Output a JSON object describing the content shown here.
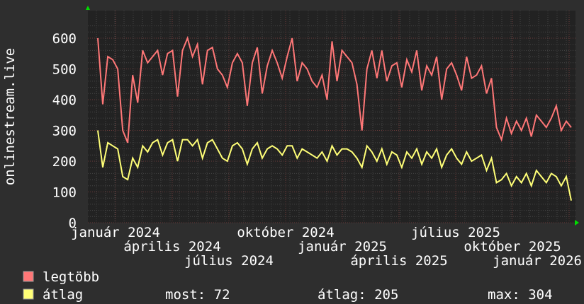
{
  "chart_data": {
    "type": "line",
    "ylabel": "onlinestream.live",
    "ylim": [
      0,
      650
    ],
    "yticks": [
      0,
      100,
      200,
      300,
      400,
      500,
      600
    ],
    "xtick_labels": [
      "január 2024",
      "április 2024",
      "július 2024",
      "október 2024",
      "január 2025",
      "április 2025",
      "július 2025",
      "október 2025",
      "január 2026"
    ],
    "grid": true,
    "series": [
      {
        "name": "legtöbb",
        "color": "#ff7777",
        "values": [
          600,
          385,
          540,
          530,
          500,
          300,
          260,
          480,
          390,
          560,
          520,
          540,
          560,
          480,
          550,
          560,
          410,
          560,
          600,
          540,
          580,
          450,
          560,
          570,
          500,
          480,
          440,
          520,
          550,
          520,
          380,
          520,
          570,
          420,
          510,
          560,
          520,
          470,
          540,
          600,
          460,
          520,
          500,
          460,
          440,
          480,
          400,
          590,
          460,
          560,
          540,
          520,
          450,
          300,
          500,
          560,
          470,
          560,
          460,
          510,
          520,
          440,
          530,
          490,
          560,
          430,
          510,
          480,
          540,
          400,
          500,
          520,
          480,
          430,
          540,
          470,
          480,
          510,
          420,
          470,
          310,
          270,
          340,
          290,
          330,
          300,
          340,
          280,
          350,
          330,
          310,
          340,
          380,
          300,
          330,
          310
        ]
      },
      {
        "name": "átlag",
        "color": "#ffff77",
        "values": [
          300,
          180,
          260,
          250,
          240,
          150,
          140,
          210,
          180,
          250,
          230,
          260,
          270,
          220,
          260,
          270,
          200,
          270,
          270,
          250,
          270,
          210,
          260,
          270,
          240,
          210,
          200,
          250,
          260,
          240,
          190,
          240,
          260,
          210,
          240,
          250,
          240,
          220,
          250,
          250,
          210,
          240,
          230,
          220,
          210,
          230,
          200,
          250,
          220,
          240,
          240,
          230,
          210,
          180,
          250,
          230,
          200,
          240,
          190,
          230,
          220,
          180,
          230,
          210,
          240,
          190,
          230,
          210,
          240,
          180,
          220,
          240,
          210,
          190,
          230,
          200,
          210,
          220,
          170,
          210,
          130,
          140,
          160,
          120,
          150,
          130,
          160,
          120,
          170,
          150,
          130,
          160,
          150,
          120,
          150,
          72
        ]
      }
    ]
  },
  "legend": {
    "items": [
      {
        "label": "legtöbb",
        "color": "#ff7777"
      },
      {
        "label": "átlag",
        "color": "#ffff77"
      }
    ],
    "stats": {
      "most": "most: 72",
      "atlag": "átlag: 205",
      "max": "max: 304"
    }
  }
}
